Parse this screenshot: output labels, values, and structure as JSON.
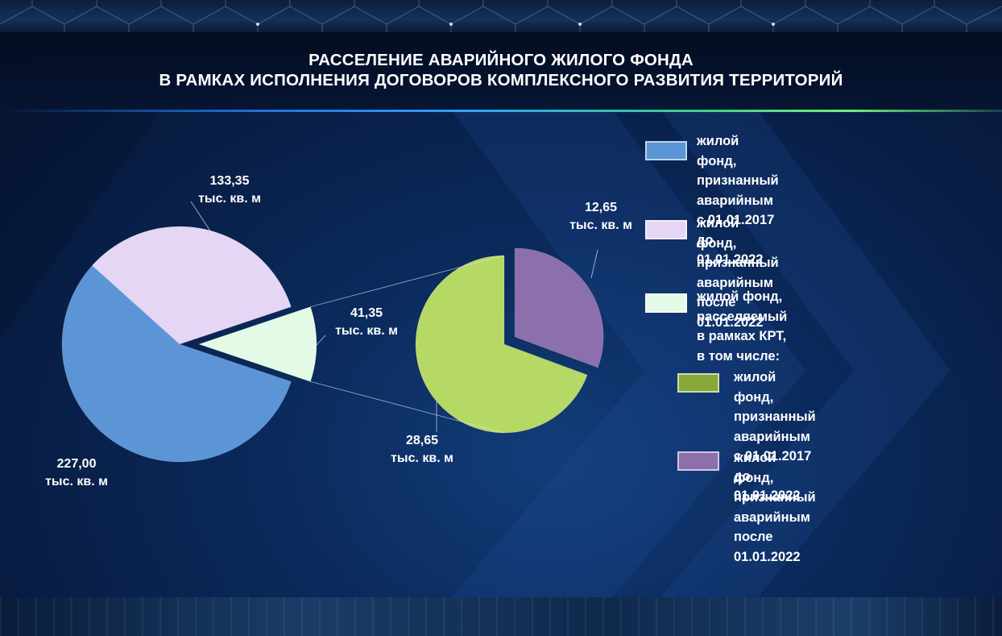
{
  "title": {
    "line1": "РАССЕЛЕНИЕ АВАРИЙНОГО ЖИЛОГО ФОНДА",
    "line2": "В РАМКАХ ИСПОЛНЕНИЯ ДОГОВОРОВ КОМПЛЕКСНОГО РАЗВИТИЯ ТЕРРИТОРИЙ"
  },
  "unit": "тыс. кв. м",
  "legend": [
    {
      "text": "жилой фонд, признанный\nаварийным с 01.01.2017\nдо 01.01.2022",
      "color": "#5b95d6"
    },
    {
      "text": "жилой фонд, признанный\nаварийным после 01.01.2022",
      "color": "#e4d6f4"
    },
    {
      "text": "жилой фонд, расселяемый\nв рамках КРТ, в том числе:",
      "color": "#e3fbe6"
    },
    {
      "text": "жилой фонд, признанный\nаварийным с 01.01.2017\nдо 01.01.2022",
      "color": "#86a93a"
    },
    {
      "text": "жилой фонд, признанный\nаварийным после 01.01.2022",
      "color": "#8c70ad"
    }
  ],
  "chart_data": [
    {
      "type": "pie",
      "labels": [
        "227,00",
        "133,35",
        "41,35"
      ],
      "values": [
        227.0,
        133.35,
        41.35
      ],
      "colors": [
        "#5b95d6",
        "#e4d6f4",
        "#e3fbe6"
      ],
      "exploded": [
        false,
        false,
        true
      ]
    },
    {
      "type": "pie",
      "labels": [
        "28,65",
        "12,65"
      ],
      "values": [
        28.65,
        12.65
      ],
      "colors": [
        "#b6d865",
        "#8c70ad"
      ],
      "exploded": [
        false,
        true
      ]
    }
  ]
}
